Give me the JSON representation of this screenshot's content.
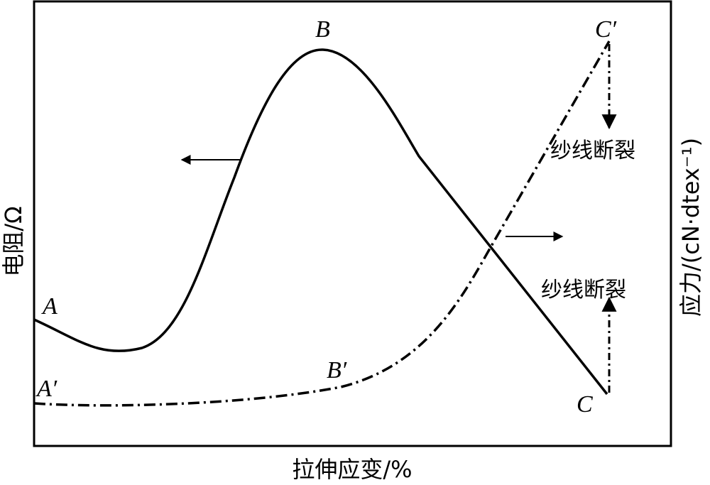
{
  "axes": {
    "y_left_label": "电阻/Ω",
    "y_right_label": "应力/(cN·dtex⁻¹)",
    "x_label": "拉伸应变/%"
  },
  "points": {
    "resistance": [
      "A",
      "B",
      "C"
    ],
    "stress": [
      "A′",
      "B′",
      "C′"
    ]
  },
  "annotations": [
    "纱线断裂",
    "纱线断裂"
  ]
}
